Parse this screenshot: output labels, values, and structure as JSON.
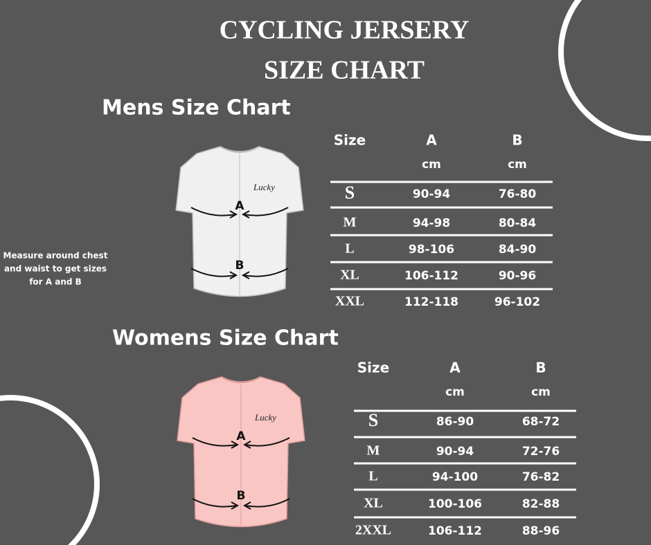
{
  "header": {
    "title_line1": "CYCLING JERSERY",
    "title_line2": "SIZE CHART"
  },
  "note": [
    "Measure around chest",
    "and waist to get sizes",
    "for A and B"
  ],
  "mens": {
    "heading": "Mens Size Chart",
    "table": {
      "header": [
        "Size",
        "A",
        "B"
      ],
      "units": [
        "cm",
        "cm"
      ],
      "rows": [
        [
          "S",
          "90-94",
          "76-80"
        ],
        [
          "M",
          "94-98",
          "80-84"
        ],
        [
          "L",
          "98-106",
          "84-90"
        ],
        [
          "XL",
          "106-112",
          "90-96"
        ],
        [
          "XXL",
          "112-118",
          "96-102"
        ]
      ]
    },
    "jersey": {
      "brand": "Lucky",
      "label_a": "A",
      "label_b": "B"
    }
  },
  "womens": {
    "heading": "Womens Size Chart",
    "table": {
      "header": [
        "Size",
        "A",
        "B"
      ],
      "units": [
        "cm",
        "cm"
      ],
      "rows": [
        [
          "S",
          "86-90",
          "68-72"
        ],
        [
          "M",
          "90-94",
          "72-76"
        ],
        [
          "L",
          "94-100",
          "76-82"
        ],
        [
          "XL",
          "100-106",
          "82-88"
        ],
        [
          "2XXL",
          "106-112",
          "88-96"
        ]
      ]
    },
    "jersey": {
      "brand": "Lucky",
      "label_a": "A",
      "label_b": "B"
    }
  }
}
